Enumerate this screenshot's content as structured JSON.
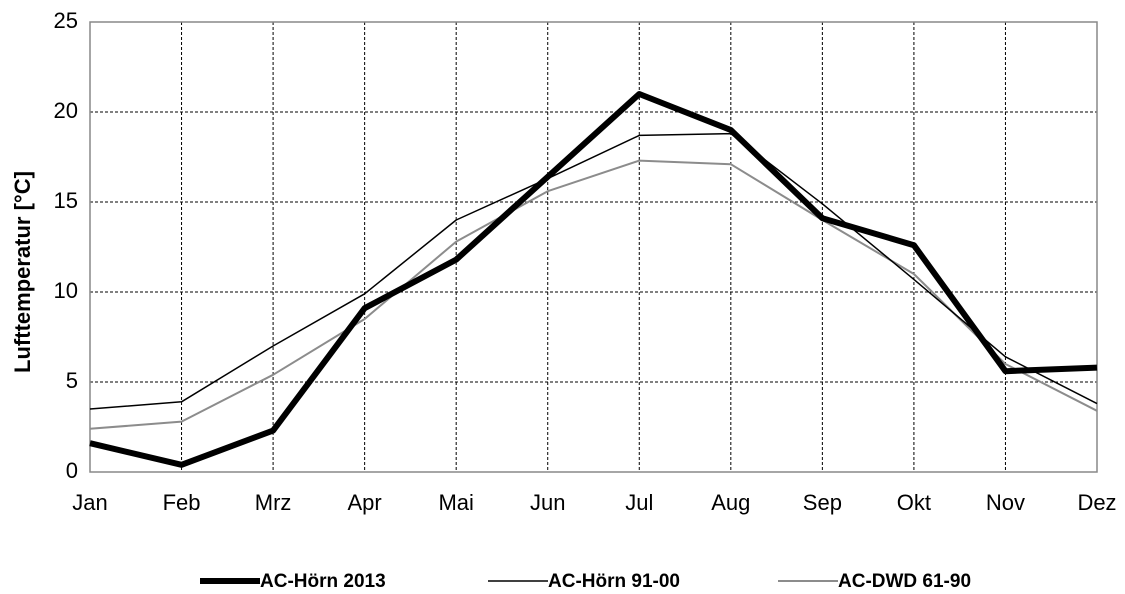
{
  "chart_data": {
    "type": "line",
    "y_label": "Lufttemperatur [°C]",
    "categories": [
      "Jan",
      "Feb",
      "Mrz",
      "Apr",
      "Mai",
      "Jun",
      "Jul",
      "Aug",
      "Sep",
      "Okt",
      "Nov",
      "Dez"
    ],
    "series": [
      {
        "name": "AC-Hörn 2013",
        "color": "#000000",
        "width": 6,
        "values": [
          1.6,
          0.4,
          2.3,
          9.1,
          11.8,
          16.4,
          21.0,
          19.0,
          14.1,
          12.6,
          5.6,
          5.8
        ]
      },
      {
        "name": "AC-Hörn 91-00",
        "color": "#000000",
        "width": 1.5,
        "values": [
          3.5,
          3.9,
          7.0,
          9.9,
          14.0,
          16.3,
          18.7,
          18.8,
          14.9,
          10.7,
          6.4,
          3.8
        ]
      },
      {
        "name": "AC-DWD 61-90",
        "color": "#8c8c8c",
        "width": 2,
        "values": [
          2.4,
          2.8,
          5.4,
          8.5,
          12.8,
          15.6,
          17.3,
          17.1,
          14.0,
          11.0,
          6.0,
          3.4
        ]
      }
    ],
    "ylim": [
      0,
      25
    ],
    "yticks": [
      0,
      5,
      10,
      15,
      20,
      25
    ],
    "grid": true,
    "legend": "bottom"
  }
}
